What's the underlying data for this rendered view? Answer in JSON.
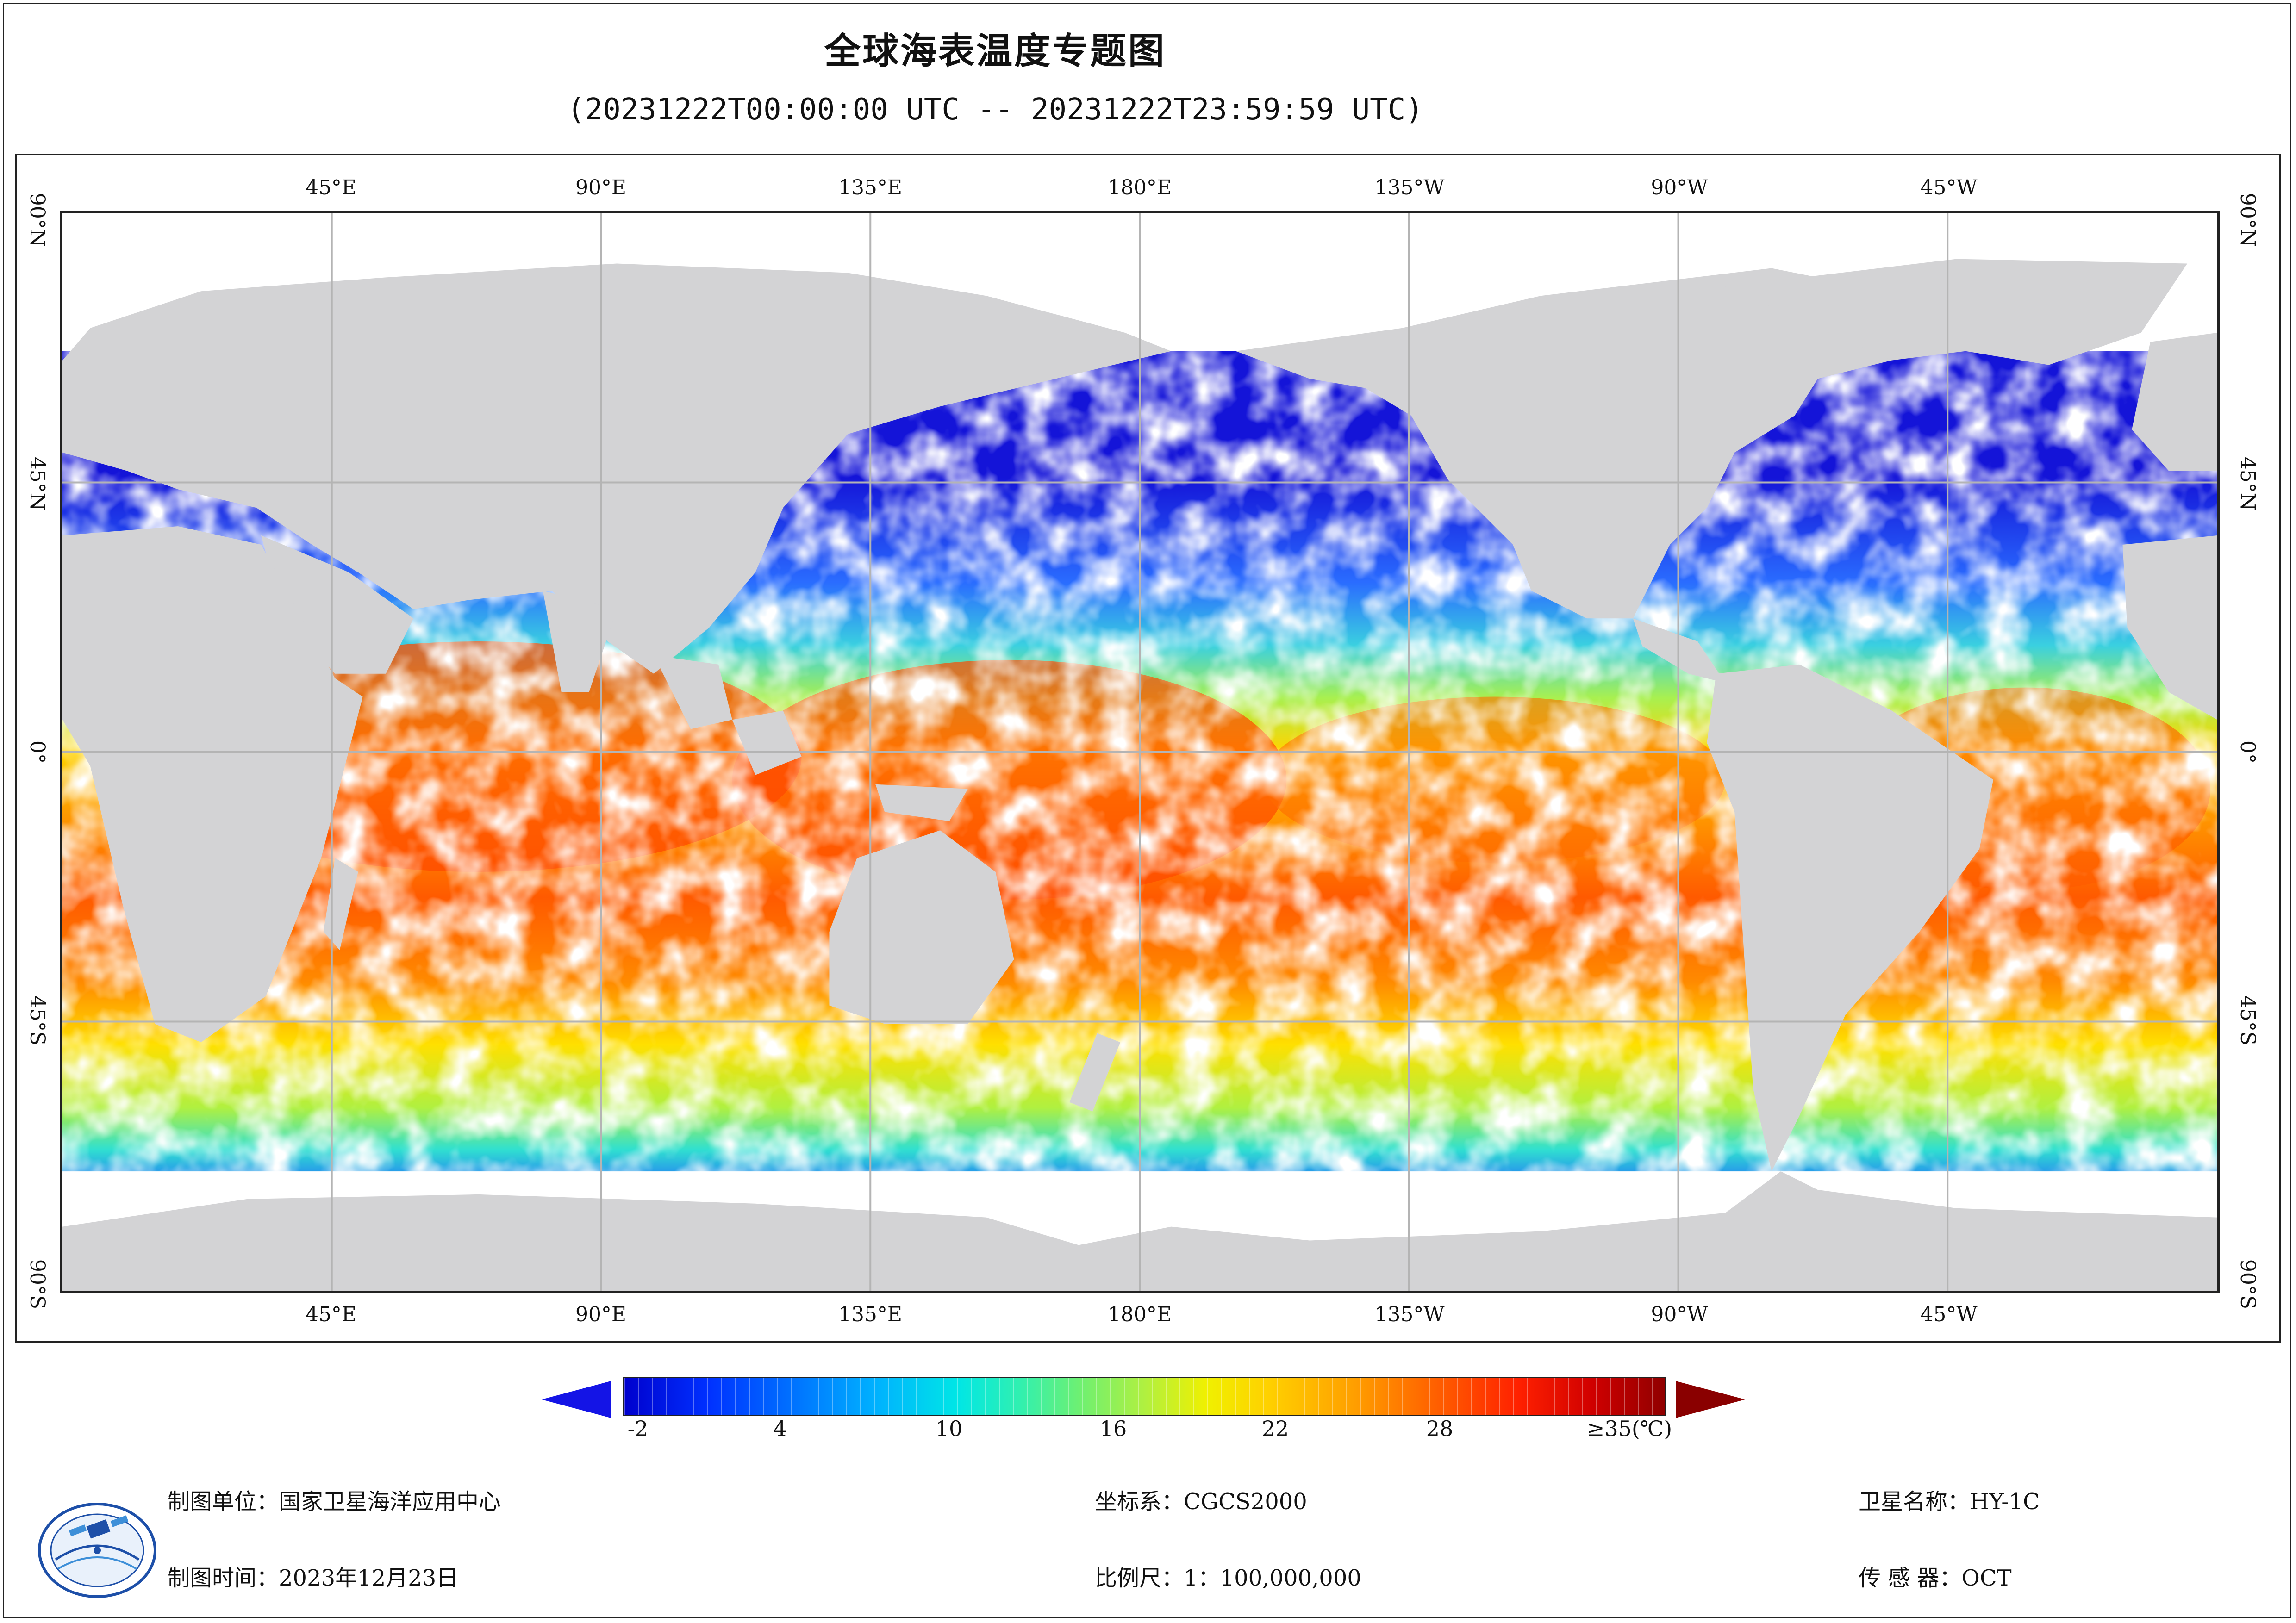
{
  "title": "全球海表温度专题图",
  "subtitle": "(20231222T00:00:00 UTC -- 20231222T23:59:59 UTC)",
  "map": {
    "projection": "equirectangular, centered at 180°",
    "lon_range": [
      20,
      380
    ],
    "lat_range": [
      -90,
      90
    ],
    "graticule": "45° lines",
    "land_color": "#d3d3d5",
    "cloud_gap_color": "#ffffff",
    "grid_color": "#b4b4b4",
    "top_ticks": [
      "45°E",
      "90°E",
      "135°E",
      "180°E",
      "135°W",
      "90°W",
      "45°W"
    ],
    "bottom_ticks": [
      "45°E",
      "90°E",
      "135°E",
      "180°E",
      "135°W",
      "90°W",
      "45°W"
    ],
    "left_ticks": [
      "90°N",
      "45°N",
      "0°",
      "45°S",
      "90°S"
    ],
    "right_ticks": [
      "90°N",
      "45°N",
      "0°",
      "45°S",
      "90°S"
    ]
  },
  "colorbar": {
    "labels": [
      "-2",
      "4",
      "10",
      "16",
      "22",
      "28",
      "≥35(℃)"
    ],
    "min": -2,
    "max": 35,
    "extend": "both"
  },
  "footer": {
    "org": "制图单位：国家卫星海洋应用中心",
    "date": "制图时间：2023年12月23日",
    "crs": "坐标系：CGCS2000",
    "scale": "比例尺：1：100,000,000",
    "satellite": "卫星名称：HY-1C",
    "sensor": "传 感 器：OCT"
  },
  "logo": {
    "icon": "nsoas-logo-icon"
  }
}
